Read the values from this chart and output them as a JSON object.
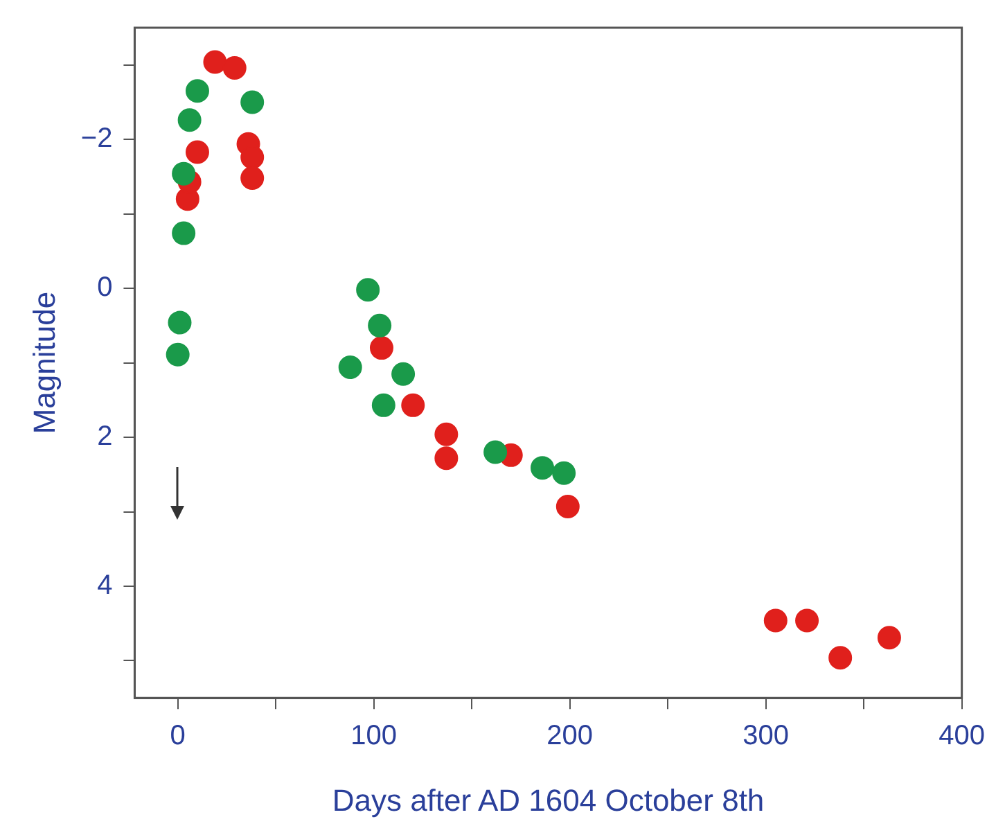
{
  "chart_data": {
    "type": "scatter",
    "xlabel": "Days after AD 1604 October 8th",
    "ylabel": "Magnitude",
    "marker": "circle",
    "grid": false,
    "legend": false,
    "xlim": [
      -22,
      400
    ],
    "xticks": [
      0,
      {
        "value": 50,
        "label": null
      },
      100,
      {
        "value": 150,
        "label": null
      },
      200,
      {
        "value": 250,
        "label": null
      },
      300,
      {
        "value": 350,
        "label": null
      },
      400
    ],
    "ylim": [
      5.5,
      -3.5
    ],
    "yticks": [
      {
        "value": -3,
        "label": null
      },
      {
        "value": -2,
        "label": "−2"
      },
      {
        "value": -1,
        "label": null
      },
      0,
      {
        "value": 1,
        "label": null
      },
      2,
      {
        "value": 3,
        "label": null
      },
      4,
      {
        "value": 5,
        "label": null
      }
    ],
    "series": [
      {
        "color": "#1a9a4a",
        "x": [
          0,
          1,
          3,
          3,
          6,
          10,
          38,
          88,
          97,
          103,
          105,
          115,
          162,
          186,
          197
        ],
        "values": [
          0.89,
          0.46,
          -0.74,
          -1.54,
          -2.26,
          -2.65,
          -2.5,
          1.06,
          0.02,
          0.5,
          1.57,
          1.15,
          2.2,
          2.41,
          2.48
        ]
      },
      {
        "color": "#e0201c",
        "x": [
          5,
          6,
          10,
          19,
          29,
          36,
          38,
          38,
          104,
          120,
          137,
          137,
          170,
          199,
          305,
          321,
          338,
          363
        ],
        "values": [
          -1.2,
          -1.43,
          -1.83,
          -3.04,
          -2.96,
          -1.94,
          -1.76,
          -1.48,
          0.8,
          1.57,
          1.96,
          2.28,
          2.24,
          2.93,
          4.46,
          4.46,
          4.96,
          4.69
        ]
      }
    ]
  }
}
